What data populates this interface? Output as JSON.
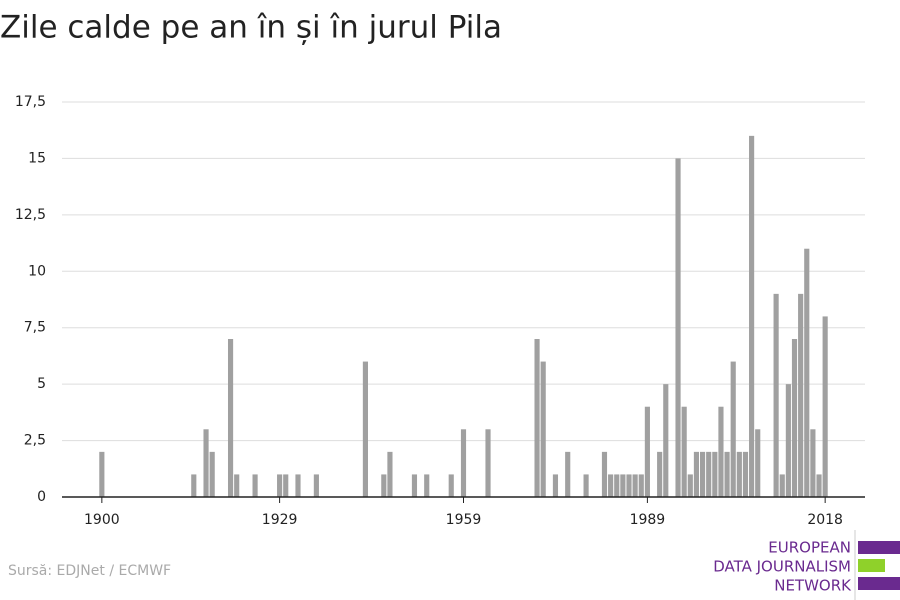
{
  "chart_data": {
    "type": "bar",
    "title": "Zile calde pe an în și în jurul Pila",
    "source": "Sursă: EDJNet / ECMWF",
    "logo": [
      "EUROPEAN",
      "DATA JOURNALISM",
      "NETWORK"
    ],
    "color": "#a0a0a0",
    "grid": true,
    "x": [
      1900,
      1901,
      1902,
      1903,
      1904,
      1905,
      1906,
      1907,
      1908,
      1909,
      1910,
      1911,
      1912,
      1913,
      1914,
      1915,
      1916,
      1917,
      1918,
      1919,
      1920,
      1921,
      1922,
      1923,
      1924,
      1925,
      1926,
      1927,
      1928,
      1929,
      1930,
      1931,
      1932,
      1933,
      1934,
      1935,
      1936,
      1937,
      1938,
      1939,
      1940,
      1941,
      1942,
      1943,
      1944,
      1945,
      1946,
      1947,
      1948,
      1949,
      1950,
      1951,
      1952,
      1953,
      1954,
      1955,
      1956,
      1957,
      1958,
      1959,
      1960,
      1961,
      1962,
      1963,
      1964,
      1965,
      1966,
      1967,
      1968,
      1969,
      1970,
      1971,
      1972,
      1973,
      1974,
      1975,
      1976,
      1977,
      1978,
      1979,
      1980,
      1981,
      1982,
      1983,
      1984,
      1985,
      1986,
      1987,
      1988,
      1989,
      1990,
      1991,
      1992,
      1993,
      1994,
      1995,
      1996,
      1997,
      1998,
      1999,
      2000,
      2001,
      2002,
      2003,
      2004,
      2005,
      2006,
      2007,
      2008,
      2009,
      2010,
      2011,
      2012,
      2013,
      2014,
      2015,
      2016,
      2017,
      2018
    ],
    "values": [
      2,
      0,
      0,
      0,
      0,
      0,
      0,
      0,
      0,
      0,
      0,
      0,
      0,
      0,
      0,
      1,
      0,
      3,
      2,
      0,
      0,
      7,
      1,
      0,
      0,
      1,
      0,
      0,
      0,
      1,
      1,
      0,
      1,
      0,
      0,
      1,
      0,
      0,
      0,
      0,
      0,
      0,
      0,
      6,
      0,
      0,
      1,
      2,
      0,
      0,
      0,
      1,
      0,
      1,
      0,
      0,
      0,
      1,
      0,
      3,
      0,
      0,
      0,
      3,
      0,
      0,
      0,
      0,
      0,
      0,
      0,
      7,
      6,
      0,
      1,
      0,
      2,
      0,
      0,
      1,
      0,
      0,
      2,
      1,
      1,
      1,
      1,
      1,
      1,
      4,
      0,
      2,
      5,
      0,
      15,
      4,
      1,
      2,
      2,
      2,
      2,
      4,
      2,
      6,
      2,
      2,
      16,
      3,
      0,
      0,
      9,
      1,
      5,
      7,
      9,
      11,
      3,
      1,
      8
    ],
    "xlim": [
      1893.5,
      2024.5
    ],
    "xticks": [
      1900,
      1929,
      1959,
      1989,
      2018
    ],
    "ylim": [
      0,
      17.5
    ],
    "yticks": [
      0,
      {
        "value": 2.5,
        "label": "2,5"
      },
      5,
      {
        "value": 7.5,
        "label": "7,5"
      },
      10,
      {
        "value": 12.5,
        "label": "12,5"
      },
      15,
      {
        "value": 17.5,
        "label": "17,5"
      }
    ]
  }
}
